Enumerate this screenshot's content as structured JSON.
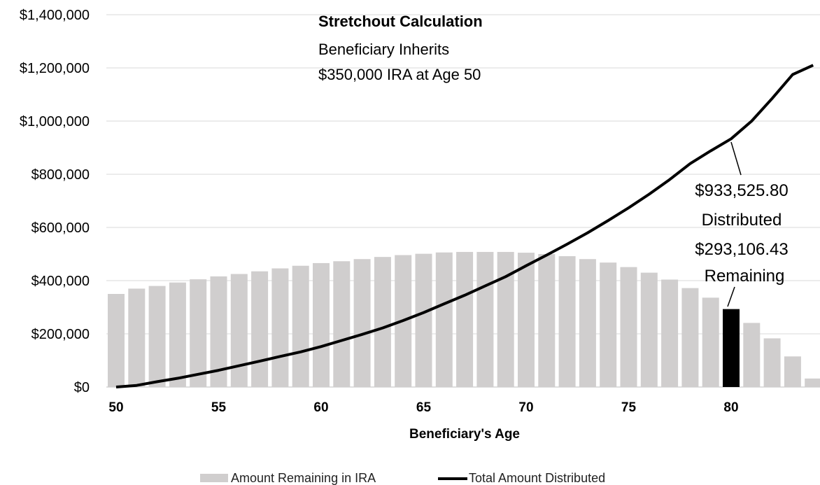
{
  "chart_data": {
    "type": "bar",
    "title": "Stretchout Calculation",
    "subtitle_lines": [
      "Beneficiary Inherits",
      "$350,000 IRA at Age 50"
    ],
    "xlabel": "Beneficiary's Age",
    "ylabel": "",
    "ylim": [
      0,
      1400000
    ],
    "y_ticks": [
      "$0",
      "$200,000",
      "$400,000",
      "$600,000",
      "$800,000",
      "$1,000,000",
      "$1,200,000",
      "$1,400,000"
    ],
    "x_ticks": [
      "50",
      "55",
      "60",
      "65",
      "70",
      "75",
      "80"
    ],
    "grid": true,
    "legend_position": "bottom",
    "x": [
      50,
      51,
      52,
      53,
      54,
      55,
      56,
      57,
      58,
      59,
      60,
      61,
      62,
      63,
      64,
      65,
      66,
      67,
      68,
      69,
      70,
      71,
      72,
      73,
      74,
      75,
      76,
      77,
      78,
      79,
      80,
      81,
      82,
      83,
      84
    ],
    "series": [
      {
        "name": "Amount Remaining in IRA",
        "kind": "bar",
        "color": "#d0cece",
        "highlight_color": "#000000",
        "highlight_x": 80,
        "values": [
          350000,
          370000,
          380000,
          393000,
          405000,
          416000,
          425000,
          435000,
          446000,
          456000,
          466000,
          473000,
          481000,
          489000,
          496000,
          501000,
          506000,
          508000,
          508000,
          508000,
          505000,
          500000,
          492000,
          481000,
          468000,
          451000,
          430000,
          404000,
          372000,
          336000,
          293106.43,
          241000,
          183000,
          115000,
          32000
        ]
      },
      {
        "name": "Total Amount Distributed",
        "kind": "line",
        "color": "#000000",
        "values": [
          0,
          6000,
          20000,
          33000,
          48000,
          63000,
          80000,
          97000,
          115000,
          132000,
          152000,
          175000,
          198000,
          222000,
          250000,
          280000,
          313000,
          345000,
          380000,
          415000,
          456000,
          496000,
          537000,
          580000,
          626000,
          674000,
          725000,
          780000,
          840000,
          888000,
          933525.8,
          1000000,
          1085000,
          1175000,
          1210000
        ]
      }
    ],
    "annotation": {
      "lines": [
        "$933,525.80",
        "Distributed",
        "$293,106.43",
        "Remaining"
      ]
    }
  }
}
